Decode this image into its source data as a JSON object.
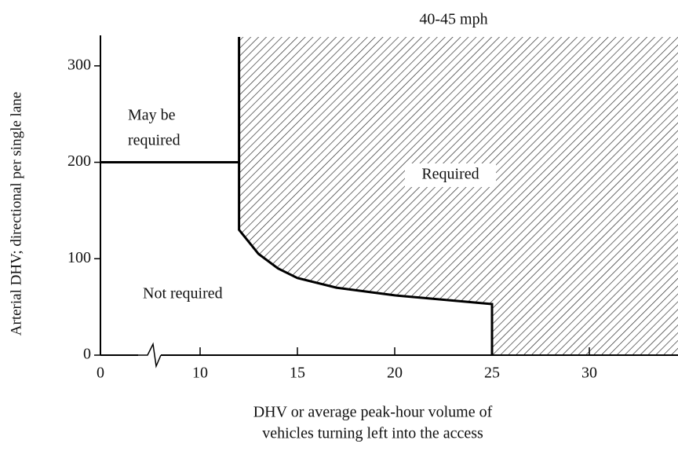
{
  "chart_data": {
    "type": "line",
    "title": "40-45 mph",
    "ylabel": "Arterial DHV; directional per single lane",
    "xlabel": [
      "DHV or average peak-hour volume of",
      "vehicles turning left into the access"
    ],
    "annotations": [
      "May be",
      "required",
      "Required",
      "Not required"
    ],
    "xlim": [
      0,
      35
    ],
    "ylim": [
      0,
      330
    ],
    "xticks": [
      0,
      10,
      15,
      20,
      25,
      30
    ],
    "yticks": [
      0,
      100,
      200,
      300
    ],
    "axis_break": true,
    "hatch": true,
    "color": "#000000",
    "series": [
      {
        "x": [
          0,
          12
        ],
        "values": [
          200,
          200
        ]
      },
      {
        "x": [
          12,
          12,
          13,
          14,
          15,
          17,
          20,
          25,
          25
        ],
        "values": [
          330,
          130,
          105,
          90,
          80,
          70,
          62,
          53,
          0
        ]
      }
    ]
  }
}
